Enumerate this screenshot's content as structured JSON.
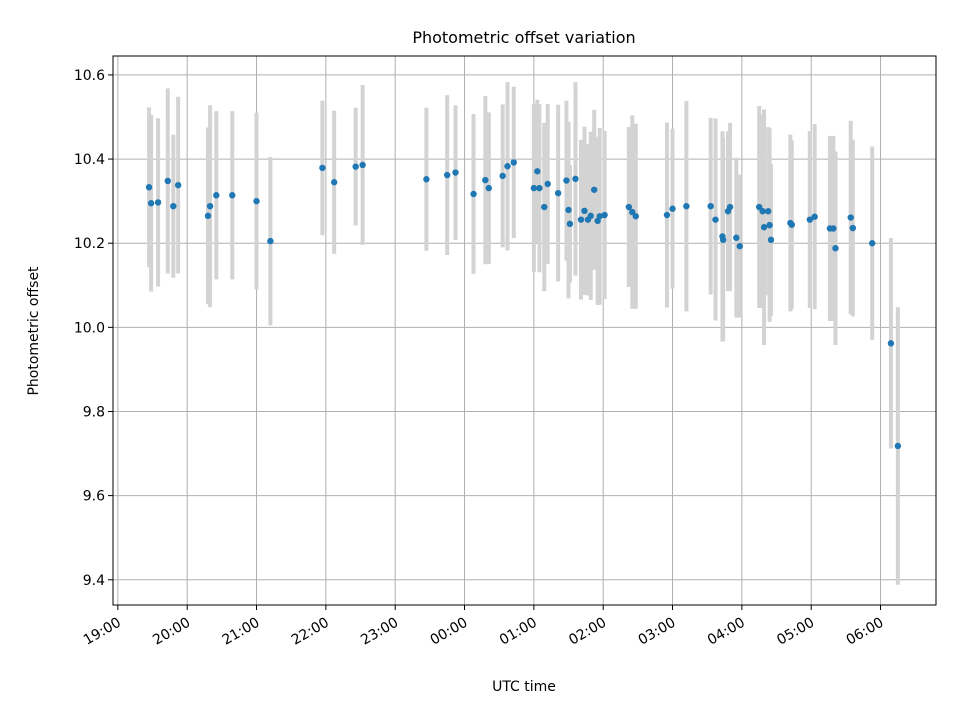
{
  "chart_data": {
    "type": "scatter",
    "title": "Photometric offset variation",
    "xlabel": "UTC time",
    "ylabel": "Photometric offset",
    "x_tick_labels": [
      "19:00",
      "20:00",
      "21:00",
      "22:00",
      "23:00",
      "00:00",
      "01:00",
      "02:00",
      "03:00",
      "04:00",
      "05:00",
      "06:00"
    ],
    "y_tick_labels": [
      "9.4",
      "9.6",
      "9.8",
      "10.0",
      "10.2",
      "10.4",
      "10.6"
    ],
    "x_ticks_hours": [
      0,
      1,
      2,
      3,
      4,
      5,
      6,
      7,
      8,
      9,
      10,
      11
    ],
    "y_ticks": [
      9.4,
      9.6,
      9.8,
      10.0,
      10.2,
      10.4,
      10.6
    ],
    "xlim_hours_since_1900": [
      -0.07,
      11.8
    ],
    "ylim": [
      9.34,
      10.645
    ],
    "grid": true,
    "legend": "none",
    "colors": {
      "point": "#1f77b4",
      "errorbar": "#d3d3d3",
      "grid": "#b0b0b0"
    },
    "x_unit_note": "x values are hours after 19:00 UTC",
    "points": [
      {
        "x": 0.45,
        "y": 10.333,
        "err": 0.19
      },
      {
        "x": 0.48,
        "y": 10.295,
        "err": 0.21
      },
      {
        "x": 0.58,
        "y": 10.297,
        "err": 0.2
      },
      {
        "x": 0.72,
        "y": 10.348,
        "err": 0.22
      },
      {
        "x": 0.8,
        "y": 10.288,
        "err": 0.17
      },
      {
        "x": 0.87,
        "y": 10.338,
        "err": 0.21
      },
      {
        "x": 1.3,
        "y": 10.265,
        "err": 0.21
      },
      {
        "x": 1.33,
        "y": 10.288,
        "err": 0.24
      },
      {
        "x": 1.42,
        "y": 10.314,
        "err": 0.2
      },
      {
        "x": 1.65,
        "y": 10.314,
        "err": 0.2
      },
      {
        "x": 2.0,
        "y": 10.3,
        "err": 0.21
      },
      {
        "x": 2.2,
        "y": 10.205,
        "err": 0.2
      },
      {
        "x": 2.95,
        "y": 10.379,
        "err": 0.16
      },
      {
        "x": 3.12,
        "y": 10.345,
        "err": 0.17
      },
      {
        "x": 3.43,
        "y": 10.382,
        "err": 0.14
      },
      {
        "x": 3.53,
        "y": 10.386,
        "err": 0.19
      },
      {
        "x": 4.45,
        "y": 10.352,
        "err": 0.17
      },
      {
        "x": 4.75,
        "y": 10.362,
        "err": 0.19
      },
      {
        "x": 4.87,
        "y": 10.368,
        "err": 0.16
      },
      {
        "x": 5.13,
        "y": 10.317,
        "err": 0.19
      },
      {
        "x": 5.3,
        "y": 10.35,
        "err": 0.2
      },
      {
        "x": 5.35,
        "y": 10.331,
        "err": 0.18
      },
      {
        "x": 5.55,
        "y": 10.36,
        "err": 0.17
      },
      {
        "x": 5.62,
        "y": 10.383,
        "err": 0.2
      },
      {
        "x": 5.71,
        "y": 10.392,
        "err": 0.18
      },
      {
        "x": 6.0,
        "y": 10.331,
        "err": 0.2
      },
      {
        "x": 6.05,
        "y": 10.371,
        "err": 0.17
      },
      {
        "x": 6.08,
        "y": 10.331,
        "err": 0.2
      },
      {
        "x": 6.15,
        "y": 10.286,
        "err": 0.2
      },
      {
        "x": 6.2,
        "y": 10.341,
        "err": 0.19
      },
      {
        "x": 6.35,
        "y": 10.319,
        "err": 0.21
      },
      {
        "x": 6.47,
        "y": 10.349,
        "err": 0.19
      },
      {
        "x": 6.5,
        "y": 10.279,
        "err": 0.21
      },
      {
        "x": 6.52,
        "y": 10.246,
        "err": 0.14
      },
      {
        "x": 6.6,
        "y": 10.353,
        "err": 0.23
      },
      {
        "x": 6.68,
        "y": 10.256,
        "err": 0.19
      },
      {
        "x": 6.73,
        "y": 10.277,
        "err": 0.2
      },
      {
        "x": 6.78,
        "y": 10.256,
        "err": 0.18
      },
      {
        "x": 6.82,
        "y": 10.265,
        "err": 0.2
      },
      {
        "x": 6.87,
        "y": 10.327,
        "err": 0.19
      },
      {
        "x": 6.92,
        "y": 10.253,
        "err": 0.2
      },
      {
        "x": 6.95,
        "y": 10.264,
        "err": 0.21
      },
      {
        "x": 7.02,
        "y": 10.267,
        "err": 0.2
      },
      {
        "x": 7.37,
        "y": 10.286,
        "err": 0.19
      },
      {
        "x": 7.42,
        "y": 10.274,
        "err": 0.23
      },
      {
        "x": 7.47,
        "y": 10.264,
        "err": 0.22
      },
      {
        "x": 7.92,
        "y": 10.267,
        "err": 0.22
      },
      {
        "x": 8.0,
        "y": 10.282,
        "err": 0.19
      },
      {
        "x": 8.2,
        "y": 10.288,
        "err": 0.25
      },
      {
        "x": 8.55,
        "y": 10.288,
        "err": 0.21
      },
      {
        "x": 8.62,
        "y": 10.256,
        "err": 0.24
      },
      {
        "x": 8.72,
        "y": 10.216,
        "err": 0.25
      },
      {
        "x": 8.73,
        "y": 10.208,
        "err": 0.24
      },
      {
        "x": 8.8,
        "y": 10.276,
        "err": 0.19
      },
      {
        "x": 8.83,
        "y": 10.286,
        "err": 0.2
      },
      {
        "x": 8.92,
        "y": 10.213,
        "err": 0.19
      },
      {
        "x": 8.97,
        "y": 10.193,
        "err": 0.17
      },
      {
        "x": 9.25,
        "y": 10.286,
        "err": 0.24
      },
      {
        "x": 9.3,
        "y": 10.276,
        "err": 0.23
      },
      {
        "x": 9.32,
        "y": 10.238,
        "err": 0.28
      },
      {
        "x": 9.38,
        "y": 10.276,
        "err": 0.2
      },
      {
        "x": 9.4,
        "y": 10.243,
        "err": 0.23
      },
      {
        "x": 9.42,
        "y": 10.208,
        "err": 0.18
      },
      {
        "x": 9.7,
        "y": 10.248,
        "err": 0.21
      },
      {
        "x": 9.72,
        "y": 10.244,
        "err": 0.2
      },
      {
        "x": 9.98,
        "y": 10.256,
        "err": 0.21
      },
      {
        "x": 10.05,
        "y": 10.263,
        "err": 0.22
      },
      {
        "x": 10.27,
        "y": 10.235,
        "err": 0.22
      },
      {
        "x": 10.32,
        "y": 10.235,
        "err": 0.22
      },
      {
        "x": 10.35,
        "y": 10.188,
        "err": 0.23
      },
      {
        "x": 10.57,
        "y": 10.261,
        "err": 0.23
      },
      {
        "x": 10.6,
        "y": 10.236,
        "err": 0.21
      },
      {
        "x": 10.88,
        "y": 10.2,
        "err": 0.23
      },
      {
        "x": 11.15,
        "y": 9.962,
        "err": 0.25
      },
      {
        "x": 11.25,
        "y": 9.718,
        "err": 0.33
      }
    ]
  }
}
